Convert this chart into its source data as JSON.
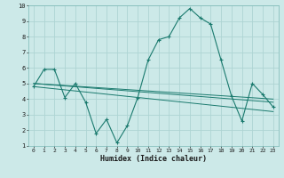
{
  "xlabel": "Humidex (Indice chaleur)",
  "background_color": "#cce9e8",
  "grid_color": "#aed4d3",
  "line_color": "#1a7a6e",
  "xlim": [
    -0.5,
    23.5
  ],
  "ylim": [
    1,
    10
  ],
  "xticks": [
    0,
    1,
    2,
    3,
    4,
    5,
    6,
    7,
    8,
    9,
    10,
    11,
    12,
    13,
    14,
    15,
    16,
    17,
    18,
    19,
    20,
    21,
    22,
    23
  ],
  "yticks": [
    1,
    2,
    3,
    4,
    5,
    6,
    7,
    8,
    9,
    10
  ],
  "series": [
    {
      "x": [
        0,
        1,
        2,
        3,
        4,
        5,
        6,
        7,
        8,
        9,
        10,
        11,
        12,
        13,
        14,
        15,
        16,
        17,
        18,
        19,
        20,
        21,
        22,
        23
      ],
      "y": [
        4.8,
        5.9,
        5.9,
        4.1,
        5.0,
        3.8,
        1.8,
        2.7,
        1.2,
        2.3,
        4.1,
        6.5,
        7.8,
        8.0,
        9.2,
        9.8,
        9.2,
        8.8,
        6.5,
        4.2,
        2.6,
        5.0,
        4.3,
        3.5
      ]
    },
    {
      "x": [
        0,
        23
      ],
      "y": [
        5.0,
        4.0
      ]
    },
    {
      "x": [
        0,
        23
      ],
      "y": [
        5.0,
        3.8
      ]
    },
    {
      "x": [
        0,
        23
      ],
      "y": [
        4.8,
        3.2
      ]
    }
  ]
}
